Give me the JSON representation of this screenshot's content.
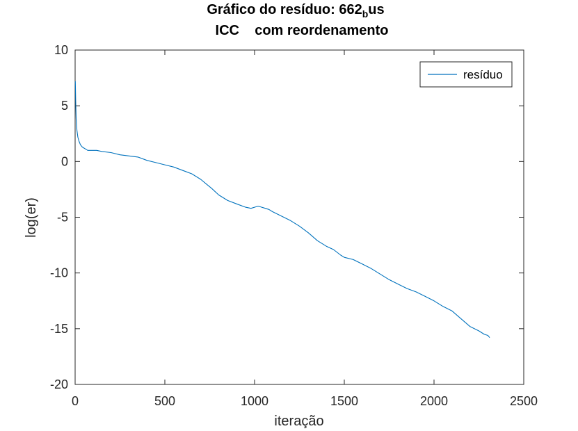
{
  "chart_data": {
    "type": "line",
    "title": {
      "line1_prefix": "Gráfico do resíduo:  662",
      "line1_sub": "b",
      "line1_suffix": "us",
      "line2": "ICC    com reordenamento"
    },
    "xlabel": "iteração",
    "ylabel": "log(er)",
    "xlim": [
      0,
      2500
    ],
    "ylim": [
      -20,
      10
    ],
    "xticks": [
      0,
      500,
      1000,
      1500,
      2000,
      2500
    ],
    "yticks": [
      -20,
      -15,
      -10,
      -5,
      0,
      5,
      10
    ],
    "grid": false,
    "legend": {
      "position": "top-right",
      "entries": [
        "resíduo"
      ]
    },
    "series": [
      {
        "name": "resíduo",
        "color": "#0072bd",
        "x": [
          1,
          3,
          6,
          10,
          15,
          22,
          30,
          40,
          50,
          60,
          70,
          80,
          90,
          100,
          120,
          150,
          200,
          250,
          300,
          350,
          400,
          450,
          500,
          550,
          600,
          650,
          700,
          730,
          760,
          800,
          850,
          900,
          950,
          980,
          1000,
          1020,
          1040,
          1060,
          1080,
          1100,
          1150,
          1200,
          1250,
          1300,
          1350,
          1400,
          1440,
          1480,
          1500,
          1550,
          1600,
          1650,
          1700,
          1750,
          1800,
          1850,
          1900,
          1950,
          2000,
          2050,
          2100,
          2150,
          2200,
          2250,
          2280,
          2300,
          2310
        ],
        "y": [
          7.2,
          5.5,
          3.8,
          2.8,
          2.2,
          1.8,
          1.5,
          1.3,
          1.2,
          1.1,
          1.0,
          1.0,
          1.0,
          1.0,
          1.0,
          0.9,
          0.8,
          0.6,
          0.5,
          0.4,
          0.1,
          -0.1,
          -0.3,
          -0.5,
          -0.8,
          -1.1,
          -1.6,
          -2.0,
          -2.4,
          -3.0,
          -3.5,
          -3.8,
          -4.1,
          -4.2,
          -4.1,
          -4.0,
          -4.1,
          -4.2,
          -4.3,
          -4.5,
          -4.9,
          -5.3,
          -5.8,
          -6.4,
          -7.1,
          -7.6,
          -7.9,
          -8.4,
          -8.6,
          -8.8,
          -9.2,
          -9.6,
          -10.1,
          -10.6,
          -11.0,
          -11.4,
          -11.7,
          -12.1,
          -12.5,
          -13.0,
          -13.4,
          -14.1,
          -14.8,
          -15.2,
          -15.5,
          -15.6,
          -15.8
        ]
      }
    ]
  }
}
